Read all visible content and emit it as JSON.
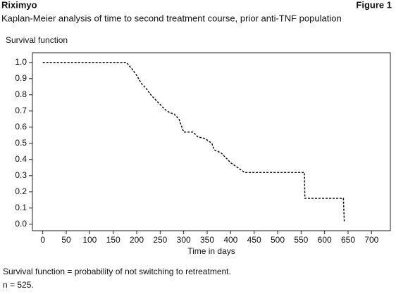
{
  "chart_data": {
    "type": "line",
    "header": "Riximyo",
    "figure": "Figure 1",
    "title": "Kaplan-Meier analysis of time to second treatment course, prior anti-TNF population",
    "ylabel": "Survival function",
    "xlabel": "Time in days",
    "footnotes": [
      "Survival function = probability of not switching to retreatment.",
      "n = 525."
    ],
    "x": [
      0,
      178,
      190,
      200,
      210,
      220,
      230,
      240,
      250,
      260,
      270,
      280,
      290,
      295,
      300,
      320,
      330,
      345,
      360,
      365,
      380,
      390,
      400,
      410,
      420,
      430,
      557,
      558,
      640,
      642
    ],
    "series": [
      {
        "name": "Survival function",
        "color": "#111111",
        "dashed": true,
        "values": [
          1.0,
          1.0,
          0.96,
          0.92,
          0.87,
          0.84,
          0.8,
          0.77,
          0.74,
          0.71,
          0.69,
          0.68,
          0.65,
          0.61,
          0.57,
          0.57,
          0.54,
          0.53,
          0.5,
          0.46,
          0.44,
          0.41,
          0.38,
          0.36,
          0.34,
          0.32,
          0.32,
          0.16,
          0.16,
          0.01
        ]
      }
    ],
    "xlim": [
      -22,
      740
    ],
    "ylim": [
      -0.04,
      1.06
    ],
    "xticks": [
      0,
      50,
      100,
      150,
      200,
      250,
      300,
      350,
      400,
      450,
      500,
      550,
      600,
      650,
      700
    ],
    "yticks": [
      {
        "value": 0,
        "label": "0.0"
      },
      0.1,
      0.2,
      0.3,
      0.4,
      0.5,
      0.6,
      0.7,
      0.8,
      0.9,
      {
        "value": 1,
        "label": "1.0"
      }
    ]
  }
}
